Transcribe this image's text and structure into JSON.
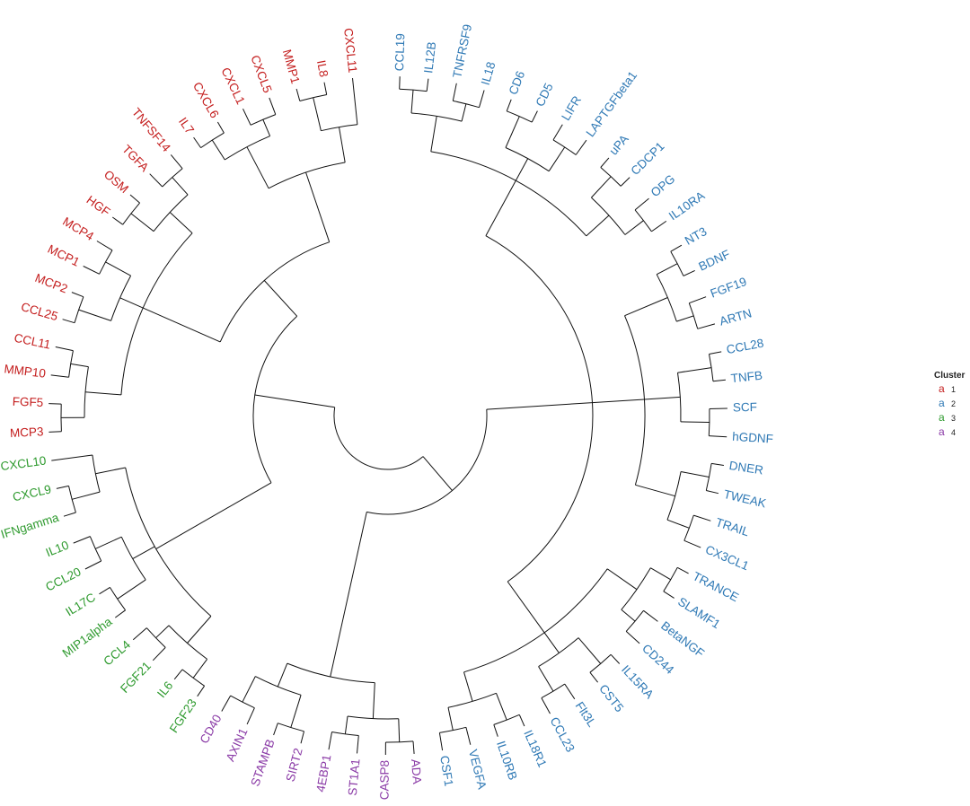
{
  "diagram": {
    "type": "circular-dendrogram",
    "colors": {
      "1": "#c41e1e",
      "2": "#2f79b5",
      "3": "#2e9a2e",
      "4": "#8a3aa6"
    },
    "leaves": [
      {
        "label": "CCL19",
        "cluster": 2
      },
      {
        "label": "IL12B",
        "cluster": 2
      },
      {
        "label": "TNFRSF9",
        "cluster": 2
      },
      {
        "label": "IL18",
        "cluster": 2
      },
      {
        "label": "CD6",
        "cluster": 2
      },
      {
        "label": "CD5",
        "cluster": 2
      },
      {
        "label": "LIFR",
        "cluster": 2
      },
      {
        "label": "LAPTGFbeta1",
        "cluster": 2
      },
      {
        "label": "uPA",
        "cluster": 2
      },
      {
        "label": "CDCP1",
        "cluster": 2
      },
      {
        "label": "OPG",
        "cluster": 2
      },
      {
        "label": "IL10RA",
        "cluster": 2
      },
      {
        "label": "NT3",
        "cluster": 2
      },
      {
        "label": "BDNF",
        "cluster": 2
      },
      {
        "label": "FGF19",
        "cluster": 2
      },
      {
        "label": "ARTN",
        "cluster": 2
      },
      {
        "label": "CCL28",
        "cluster": 2
      },
      {
        "label": "TNFB",
        "cluster": 2
      },
      {
        "label": "SCF",
        "cluster": 2
      },
      {
        "label": "hGDNF",
        "cluster": 2
      },
      {
        "label": "DNER",
        "cluster": 2
      },
      {
        "label": "TWEAK",
        "cluster": 2
      },
      {
        "label": "TRAIL",
        "cluster": 2
      },
      {
        "label": "CX3CL1",
        "cluster": 2
      },
      {
        "label": "TRANCE",
        "cluster": 2
      },
      {
        "label": "SLAMF1",
        "cluster": 2
      },
      {
        "label": "BetaNGF",
        "cluster": 2
      },
      {
        "label": "CD244",
        "cluster": 2
      },
      {
        "label": "IL15RA",
        "cluster": 2
      },
      {
        "label": "CST5",
        "cluster": 2
      },
      {
        "label": "Flt3L",
        "cluster": 2
      },
      {
        "label": "CCL23",
        "cluster": 2
      },
      {
        "label": "IL18R1",
        "cluster": 2
      },
      {
        "label": "IL10RB",
        "cluster": 2
      },
      {
        "label": "VEGFA",
        "cluster": 2
      },
      {
        "label": "CSF1",
        "cluster": 2
      },
      {
        "label": "ADA",
        "cluster": 4
      },
      {
        "label": "CASP8",
        "cluster": 4
      },
      {
        "label": "ST1A1",
        "cluster": 4
      },
      {
        "label": "4EBP1",
        "cluster": 4
      },
      {
        "label": "SIRT2",
        "cluster": 4
      },
      {
        "label": "STAMPB",
        "cluster": 4
      },
      {
        "label": "AXIN1",
        "cluster": 4
      },
      {
        "label": "CD40",
        "cluster": 4
      },
      {
        "label": "FGF23",
        "cluster": 3
      },
      {
        "label": "IL6",
        "cluster": 3
      },
      {
        "label": "FGF21",
        "cluster": 3
      },
      {
        "label": "CCL4",
        "cluster": 3
      },
      {
        "label": "MIP1alpha",
        "cluster": 3
      },
      {
        "label": "IL17C",
        "cluster": 3
      },
      {
        "label": "CCL20",
        "cluster": 3
      },
      {
        "label": "IL10",
        "cluster": 3
      },
      {
        "label": "IFNgamma",
        "cluster": 3
      },
      {
        "label": "CXCL9",
        "cluster": 3
      },
      {
        "label": "CXCL10",
        "cluster": 3
      },
      {
        "label": "MCP3",
        "cluster": 1
      },
      {
        "label": "FGF5",
        "cluster": 1
      },
      {
        "label": "MMP10",
        "cluster": 1
      },
      {
        "label": "CCL11",
        "cluster": 1
      },
      {
        "label": "CCL25",
        "cluster": 1
      },
      {
        "label": "MCP2",
        "cluster": 1
      },
      {
        "label": "MCP1",
        "cluster": 1
      },
      {
        "label": "MCP4",
        "cluster": 1
      },
      {
        "label": "HGF",
        "cluster": 1
      },
      {
        "label": "OSM",
        "cluster": 1
      },
      {
        "label": "TGFA",
        "cluster": 1
      },
      {
        "label": "TNFSF14",
        "cluster": 1
      },
      {
        "label": "IL7",
        "cluster": 1
      },
      {
        "label": "CXCL6",
        "cluster": 1
      },
      {
        "label": "CXCL1",
        "cluster": 1
      },
      {
        "label": "CXCL5",
        "cluster": 1
      },
      {
        "label": "MMP1",
        "cluster": 1
      },
      {
        "label": "IL8",
        "cluster": 1
      },
      {
        "label": "CXCL11",
        "cluster": 1
      }
    ],
    "legend": {
      "title": "Cluster",
      "glyph": "a",
      "items": [
        {
          "label": "1",
          "cluster": 1
        },
        {
          "label": "2",
          "cluster": 2
        },
        {
          "label": "3",
          "cluster": 3
        },
        {
          "label": "4",
          "cluster": 4
        }
      ]
    }
  }
}
